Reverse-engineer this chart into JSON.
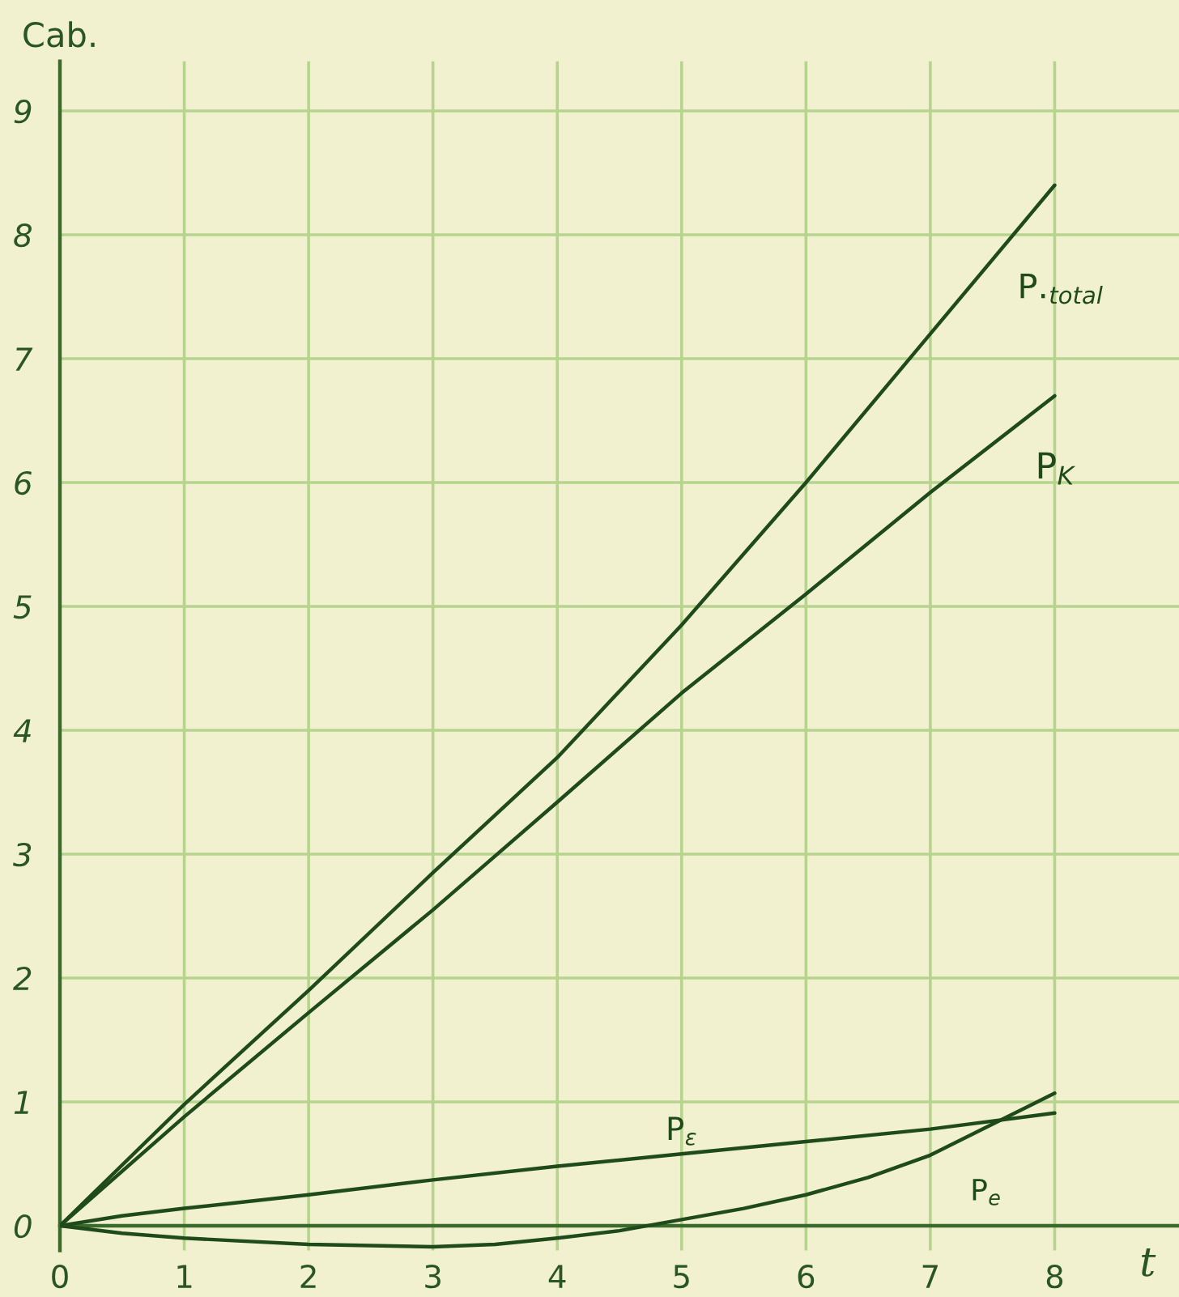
{
  "chart_data": {
    "type": "line",
    "xlabel": "t",
    "ylabel": "Cab.",
    "xlim": [
      0,
      9
    ],
    "ylim": [
      -0.2,
      9.4
    ],
    "xticks": [
      0,
      1,
      2,
      3,
      4,
      5,
      6,
      7,
      8
    ],
    "yticks": [
      0,
      1,
      2,
      3,
      4,
      5,
      6,
      7,
      8,
      9
    ],
    "grid": true,
    "line_style": "solid",
    "series": [
      {
        "name": "P.$_{total}$",
        "color": "#1e4a1c",
        "x": [
          0,
          1,
          2,
          3,
          4,
          5,
          6,
          7,
          8
        ],
        "values": [
          0,
          0.98,
          1.9,
          2.85,
          3.78,
          4.85,
          6.0,
          7.2,
          8.4
        ]
      },
      {
        "name": "P$_{K}$",
        "color": "#1e4a1c",
        "x": [
          0,
          1,
          2,
          3,
          4,
          5,
          6,
          7,
          8
        ],
        "values": [
          0,
          0.88,
          1.72,
          2.55,
          3.42,
          4.3,
          5.1,
          5.92,
          6.7
        ]
      },
      {
        "name": "P$_{ε}$",
        "color": "#1e4a1c",
        "x": [
          0,
          0.5,
          1,
          2,
          3,
          4,
          5,
          6,
          7,
          8
        ],
        "values": [
          0,
          0.08,
          0.14,
          0.25,
          0.37,
          0.48,
          0.58,
          0.68,
          0.78,
          0.91
        ]
      },
      {
        "name": "P$_{e}$",
        "color": "#1e4a1c",
        "x": [
          0,
          0.5,
          1,
          2,
          3,
          3.5,
          4,
          4.5,
          5,
          5.5,
          6,
          6.5,
          7,
          7.5,
          8
        ],
        "values": [
          0,
          -0.06,
          -0.1,
          -0.15,
          -0.17,
          -0.15,
          -0.1,
          -0.04,
          0.05,
          0.14,
          0.25,
          0.39,
          0.57,
          0.82,
          1.07
        ]
      }
    ]
  }
}
